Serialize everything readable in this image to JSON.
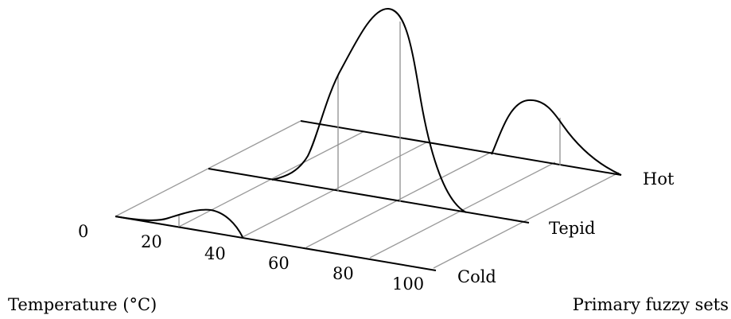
{
  "diagram": {
    "x_axis_caption": "Temperature (°C)",
    "set_axis_caption": "Primary fuzzy sets",
    "x_ticks": [
      "0",
      "20",
      "40",
      "60",
      "80",
      "100"
    ],
    "set_labels": [
      "Cold",
      "Tepid",
      "Hot"
    ],
    "colors": {
      "grid": "#9a9a9a",
      "rail": "#000000",
      "curve": "#000000",
      "stem": "#8f8f8f"
    }
  }
}
